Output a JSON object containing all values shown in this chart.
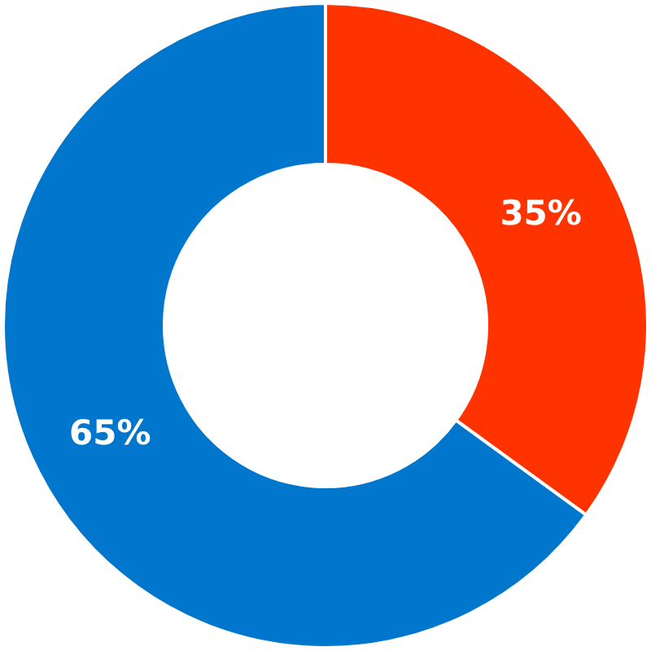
{
  "chart_data": {
    "type": "donut",
    "categories": [
      null,
      null
    ],
    "values": [
      35,
      65
    ],
    "colors": [
      "#ff3300",
      "#0077cc"
    ],
    "value_labels": [
      "35%",
      "65%"
    ],
    "legend": false
  }
}
